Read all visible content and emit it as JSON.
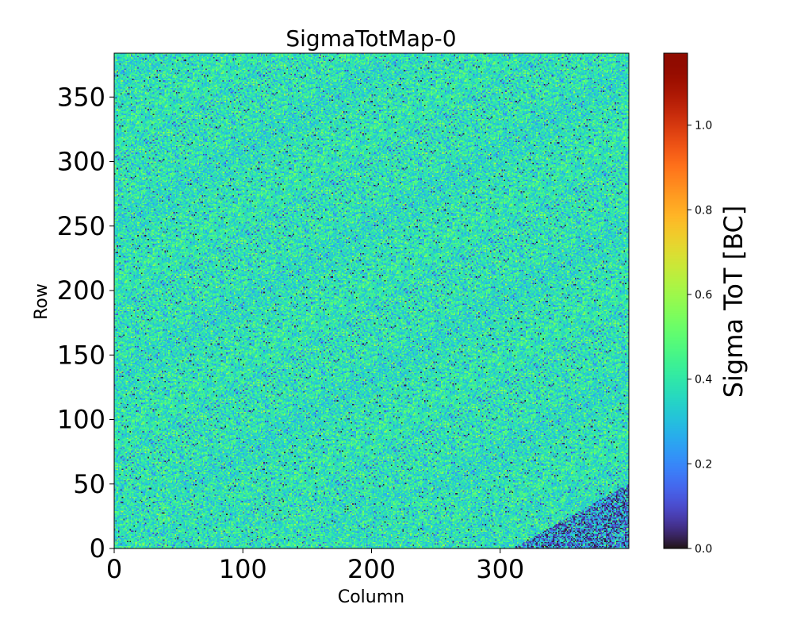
{
  "chart_data": {
    "type": "heatmap",
    "title": "SigmaTotMap-0",
    "xlabel": "Column",
    "ylabel": "Row",
    "xlim": [
      0,
      400
    ],
    "ylim": [
      0,
      384
    ],
    "n_columns": 400,
    "n_rows": 384,
    "x_ticks": [
      0,
      100,
      200,
      300
    ],
    "x_tick_labels": [
      "0",
      "100",
      "200",
      "300"
    ],
    "y_ticks": [
      0,
      50,
      100,
      150,
      200,
      250,
      300,
      350
    ],
    "y_tick_labels": [
      "0",
      "50",
      "100",
      "150",
      "200",
      "250",
      "300",
      "350"
    ],
    "colormap": "turbo",
    "colorbar": {
      "label": "Sigma ToT [BC]",
      "vmin": 0.0,
      "vmax": 1.17,
      "ticks": [
        0.0,
        0.2,
        0.4,
        0.6,
        0.8,
        1.0
      ],
      "tick_labels": [
        "0.0",
        "0.2",
        "0.4",
        "0.6",
        "0.8",
        "1.0"
      ]
    },
    "value_distribution": {
      "typical_mean": 0.38,
      "typical_spread": 0.08,
      "low_value_region": "bottom-right corner (columns ~310-400, rows ~0-50) with many near-zero pixels"
    }
  }
}
